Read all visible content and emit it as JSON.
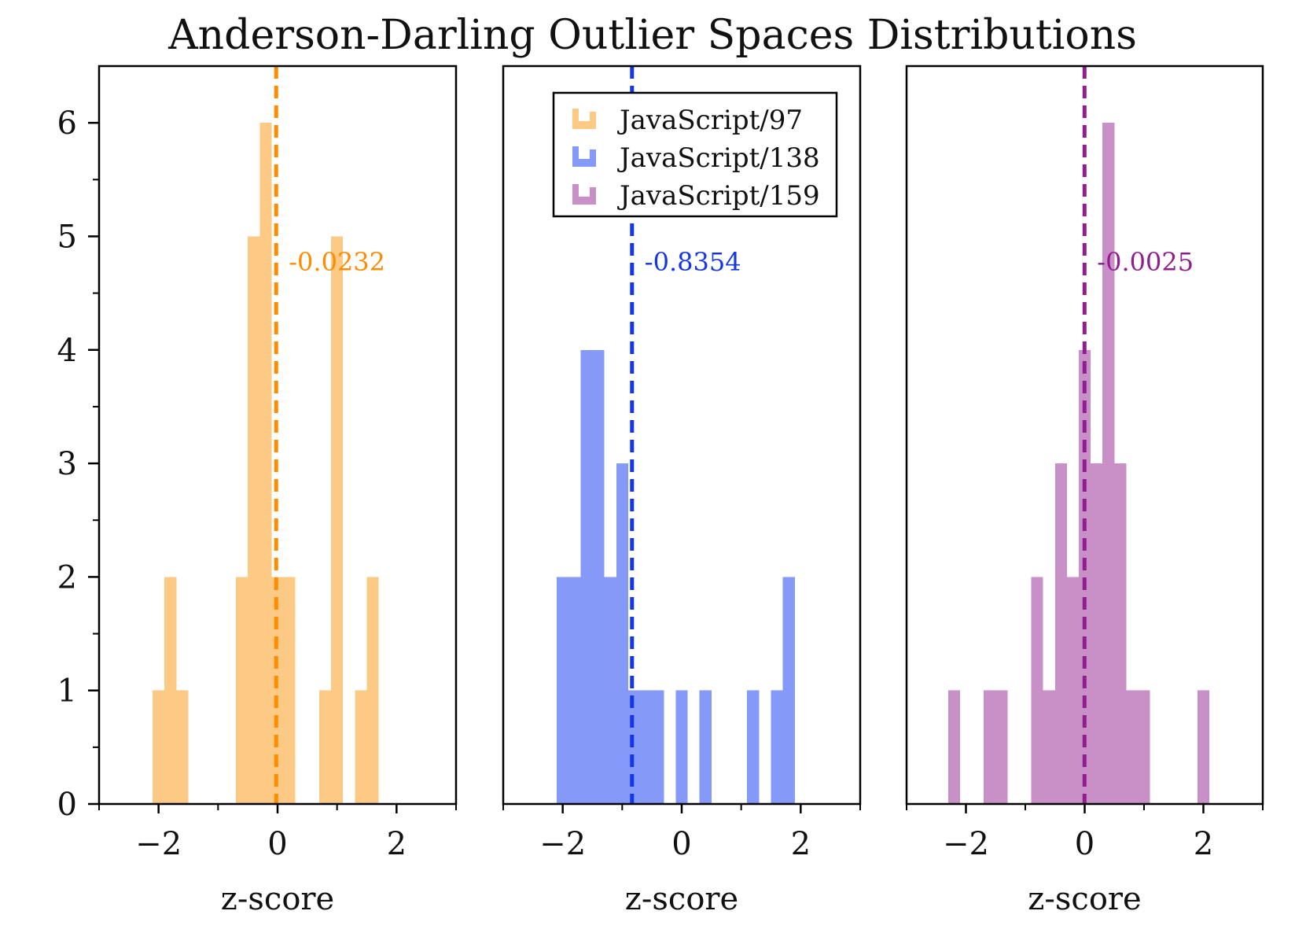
{
  "chart_data": {
    "type": "histogram",
    "title": "Anderson-Darling Outlier Spaces Distributions",
    "xlabel": "z-score",
    "ylabel": "",
    "xlim": [
      -3,
      3
    ],
    "ylim": [
      0,
      6.5
    ],
    "x_ticks": [
      -2,
      0,
      2
    ],
    "x_tick_labels": [
      "−2",
      "0",
      "2"
    ],
    "y_ticks": [
      0,
      1,
      2,
      3,
      4,
      5,
      6
    ],
    "y_tick_labels": [
      "0",
      "1",
      "2",
      "3",
      "4",
      "5",
      "6"
    ],
    "y_minor_tick_step": 0.5,
    "legend_position": "top-center (middle panel)",
    "panels": [
      {
        "series": "JavaScript/97",
        "color": "#FDCA85",
        "mean_line_color": "#FF8C00",
        "mean": -0.0232,
        "mean_label": "-0.0232",
        "bins": [
          {
            "x0": -2.1,
            "x1": -1.9,
            "count": 1
          },
          {
            "x0": -1.9,
            "x1": -1.7,
            "count": 2
          },
          {
            "x0": -1.7,
            "x1": -1.5,
            "count": 1
          },
          {
            "x0": -0.7,
            "x1": -0.5,
            "count": 2
          },
          {
            "x0": -0.5,
            "x1": -0.3,
            "count": 5
          },
          {
            "x0": -0.3,
            "x1": -0.1,
            "count": 6
          },
          {
            "x0": -0.1,
            "x1": 0.1,
            "count": 2
          },
          {
            "x0": 0.1,
            "x1": 0.3,
            "count": 2
          },
          {
            "x0": 0.7,
            "x1": 0.9,
            "count": 1
          },
          {
            "x0": 0.9,
            "x1": 1.1,
            "count": 5
          },
          {
            "x0": 1.3,
            "x1": 1.5,
            "count": 1
          },
          {
            "x0": 1.5,
            "x1": 1.7,
            "count": 2
          }
        ]
      },
      {
        "series": "JavaScript/138",
        "color": "#8499F8",
        "mean_line_color": "#1436E8",
        "mean": -0.8354,
        "mean_label": "-0.8354",
        "bins": [
          {
            "x0": -2.1,
            "x1": -1.7,
            "count": 2
          },
          {
            "x0": -1.7,
            "x1": -1.3,
            "count": 4
          },
          {
            "x0": -1.3,
            "x1": -1.1,
            "count": 2
          },
          {
            "x0": -1.1,
            "x1": -0.9,
            "count": 3
          },
          {
            "x0": -0.9,
            "x1": -0.3,
            "count": 1
          },
          {
            "x0": -0.1,
            "x1": 0.1,
            "count": 1
          },
          {
            "x0": 0.3,
            "x1": 0.5,
            "count": 1
          },
          {
            "x0": 1.1,
            "x1": 1.3,
            "count": 1
          },
          {
            "x0": 1.5,
            "x1": 1.7,
            "count": 1
          },
          {
            "x0": 1.7,
            "x1": 1.9,
            "count": 2
          }
        ]
      },
      {
        "series": "JavaScript/159",
        "color": "#C990C7",
        "mean_line_color": "#911E91",
        "mean": -0.0025,
        "mean_label": "-0.0025",
        "bins": [
          {
            "x0": -2.3,
            "x1": -2.1,
            "count": 1
          },
          {
            "x0": -1.7,
            "x1": -1.3,
            "count": 1
          },
          {
            "x0": -0.9,
            "x1": -0.7,
            "count": 2
          },
          {
            "x0": -0.7,
            "x1": -0.5,
            "count": 1
          },
          {
            "x0": -0.5,
            "x1": -0.3,
            "count": 3
          },
          {
            "x0": -0.3,
            "x1": -0.1,
            "count": 2
          },
          {
            "x0": -0.1,
            "x1": 0.1,
            "count": 4
          },
          {
            "x0": 0.1,
            "x1": 0.3,
            "count": 3
          },
          {
            "x0": 0.3,
            "x1": 0.5,
            "count": 6
          },
          {
            "x0": 0.5,
            "x1": 0.7,
            "count": 3
          },
          {
            "x0": 0.7,
            "x1": 1.1,
            "count": 1
          },
          {
            "x0": 1.9,
            "x1": 2.1,
            "count": 1
          }
        ]
      }
    ]
  }
}
